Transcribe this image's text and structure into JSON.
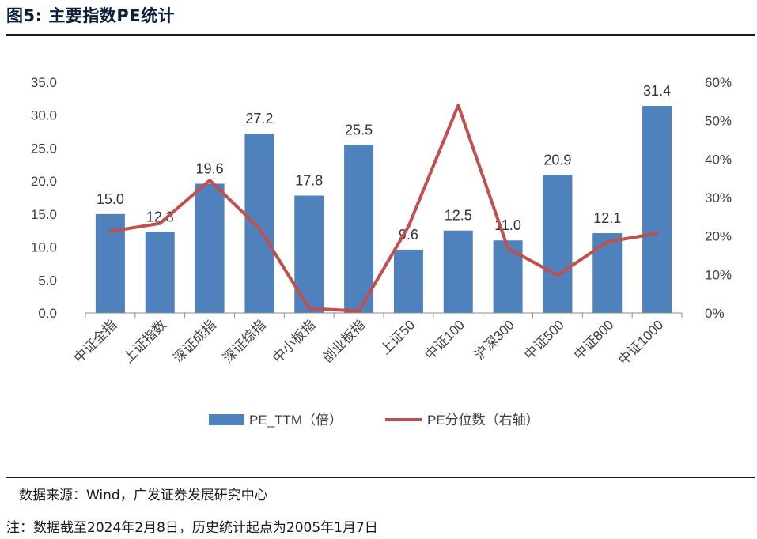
{
  "figure": {
    "title": "图5:  主要指数PE统计",
    "source": "数据来源：Wind，广发证券发展研究中心",
    "note": "注：数据截至2024年2月8日，历史统计起点为2005年1月7日"
  },
  "chart_data": {
    "type": "bar",
    "categories": [
      "中证全指",
      "上证指数",
      "深证成指",
      "深证综指",
      "中小板指",
      "创业板指",
      "上证50",
      "中证100",
      "沪深300",
      "中证500",
      "中证800",
      "中证1000"
    ],
    "series": [
      {
        "name": "PE_TTM（倍）",
        "type": "bar",
        "axis": "left",
        "color": "#4f81bd",
        "values": [
          15.0,
          12.3,
          19.6,
          27.2,
          17.8,
          25.5,
          9.6,
          12.5,
          11.0,
          20.9,
          12.1,
          31.4
        ],
        "labels": [
          "15.0",
          "12.3",
          "19.6",
          "27.2",
          "17.8",
          "25.5",
          "9.6",
          "12.5",
          "11.0",
          "20.9",
          "12.1",
          "31.4"
        ]
      },
      {
        "name": "PE分位数（右轴）",
        "type": "line",
        "axis": "right",
        "color": "#c0504d",
        "values": [
          21.2,
          23.3,
          34.5,
          22.0,
          1.2,
          0.5,
          22.5,
          54.0,
          16.8,
          9.8,
          18.5,
          20.7
        ]
      }
    ],
    "y_left": {
      "min": 0,
      "max": 35,
      "ticks": [
        "0.0",
        "5.0",
        "10.0",
        "15.0",
        "20.0",
        "25.0",
        "30.0",
        "35.0"
      ]
    },
    "y_right": {
      "min": 0,
      "max": 60,
      "ticks": [
        "0%",
        "10%",
        "20%",
        "30%",
        "40%",
        "50%",
        "60%"
      ]
    },
    "grid": false,
    "legend_position": "bottom"
  }
}
